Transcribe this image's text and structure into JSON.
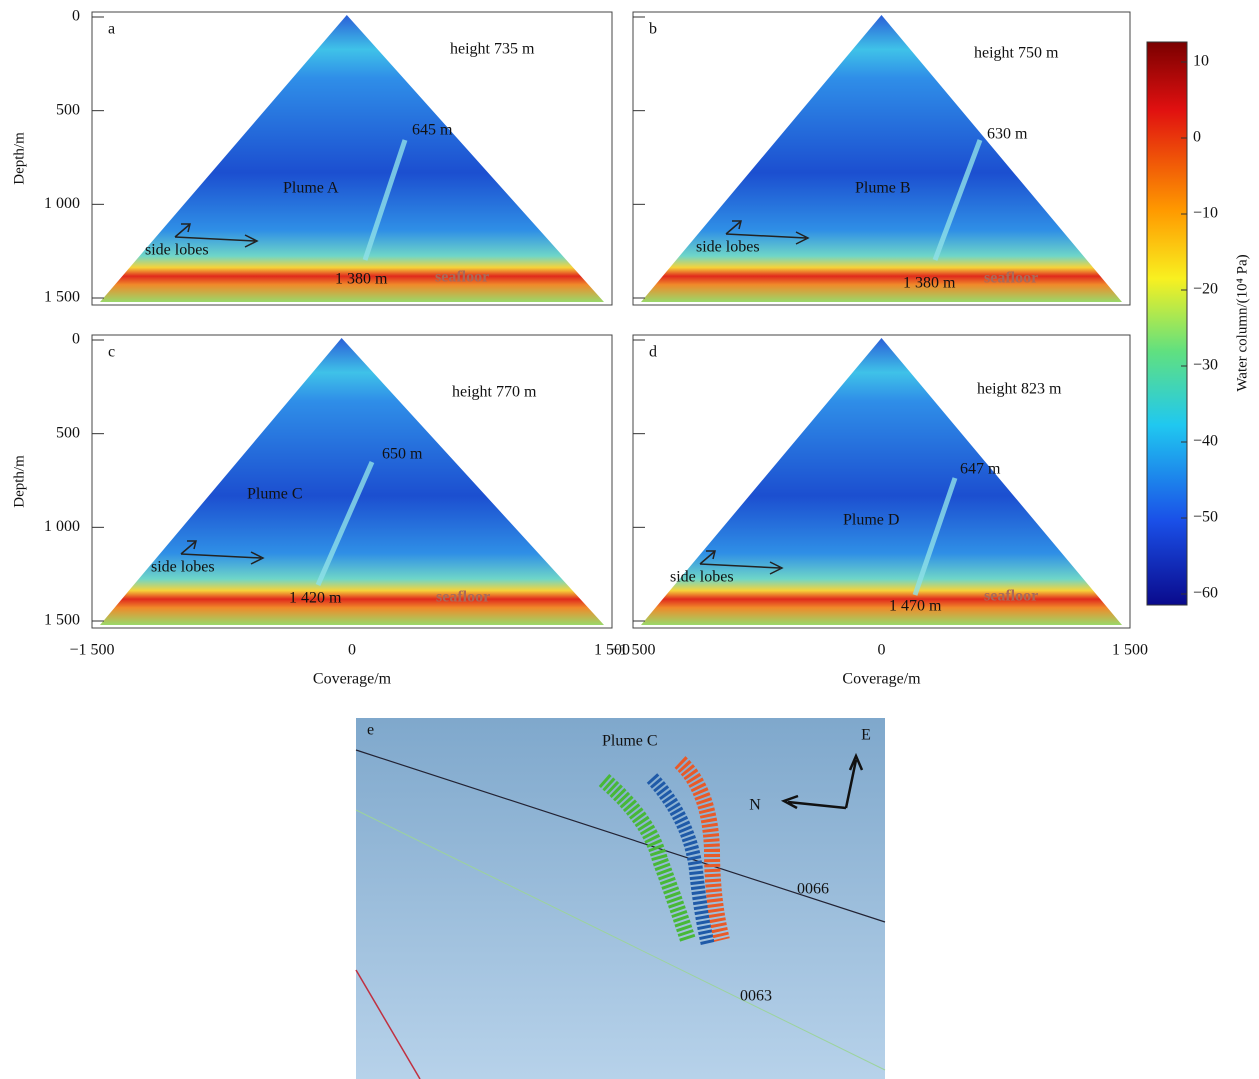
{
  "panels": [
    {
      "letter": "a",
      "height": "height 735 m",
      "plume": "Plume A",
      "plume_top": "645 m",
      "seafloor_depth": "1 380 m",
      "side_lobes": "side lobes",
      "seafloor": "seafloor"
    },
    {
      "letter": "b",
      "height": "height 750 m",
      "plume": "Plume B",
      "plume_top": "630 m",
      "seafloor_depth": "1 380 m",
      "side_lobes": "side lobes",
      "seafloor": "seafloor"
    },
    {
      "letter": "c",
      "height": "height 770 m",
      "plume": "Plume C",
      "plume_top": "650 m",
      "seafloor_depth": "1 420 m",
      "side_lobes": "side lobes",
      "seafloor": "seafloor"
    },
    {
      "letter": "d",
      "height": "height 823 m",
      "plume": "Plume D",
      "plume_top": "647 m",
      "seafloor_depth": "1 470 m",
      "side_lobes": "side lobes",
      "seafloor": "seafloor"
    }
  ],
  "depth_axis": {
    "title": "Depth/m",
    "ticks": [
      "0",
      "500",
      "1 000",
      "1 500"
    ]
  },
  "coverage_axis": {
    "title": "Coverage/m",
    "ticks": [
      "−1 500",
      "0",
      "1 500"
    ]
  },
  "colorbar": {
    "title": "Water column/(10⁴ Pa)",
    "ticks": [
      "10",
      "0",
      "−10",
      "−20",
      "−30",
      "−40",
      "−50",
      "−60"
    ]
  },
  "panel_e": {
    "letter": "e",
    "plume": "Plume C",
    "east": "E",
    "north": "N",
    "line_a": "0066",
    "line_b": "0063"
  }
}
